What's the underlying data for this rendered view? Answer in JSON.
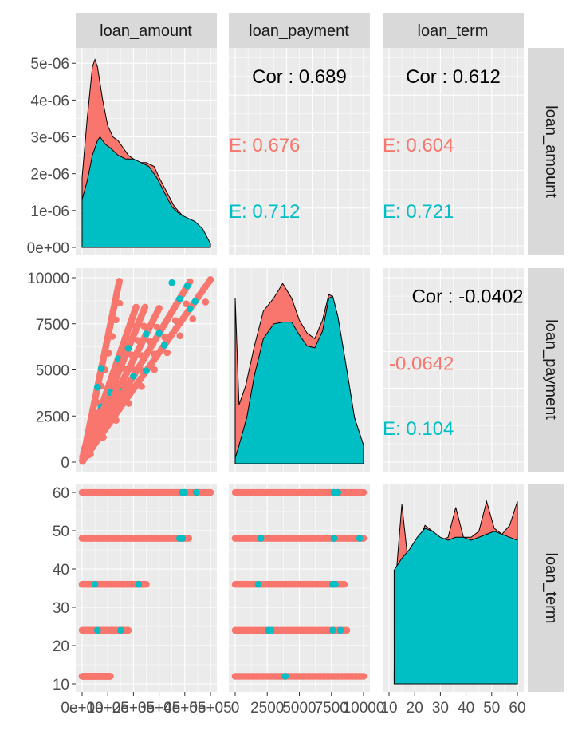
{
  "variables": [
    "loan_amount",
    "loan_payment",
    "loan_term"
  ],
  "colors": {
    "group_a": "#F8766D",
    "group_b": "#00BFC4",
    "panel_bg": "#EBEBEB",
    "strip_bg": "#D9D9D9",
    "grid": "#FFFFFF",
    "axis_text": "#4D4D4D",
    "strip_text": "#1A1A1A"
  },
  "axes": {
    "loan_amount": {
      "range": [
        0,
        500000
      ],
      "ticks": [
        0,
        100000,
        200000,
        300000,
        400000,
        500000
      ],
      "tick_labels": [
        "0e+00",
        "1e+05",
        "2e+05",
        "3e+05",
        "4e+05",
        "5e+05"
      ],
      "x_tick_labels_overlapping": [
        "0e+00",
        "2e+05",
        "4e+05",
        "5e+05"
      ]
    },
    "loan_payment": {
      "range": [
        0,
        10000
      ],
      "ticks": [
        0,
        2500,
        5000,
        7500,
        10000
      ],
      "tick_labels": [
        "0",
        "2500",
        "5000",
        "7500",
        "10000"
      ]
    },
    "loan_term": {
      "range": [
        10,
        60
      ],
      "ticks": [
        10,
        20,
        30,
        40,
        50,
        60
      ],
      "tick_labels": [
        "10",
        "20",
        "30",
        "40",
        "50",
        "60"
      ]
    },
    "density_y": {
      "range": [
        0,
        5.2e-06
      ],
      "ticks": [
        0,
        1e-06,
        2e-06,
        3e-06,
        4e-06,
        5e-06
      ],
      "tick_labels": [
        "0e+00",
        "1e-06",
        "2e-06",
        "3e-06",
        "4e-06",
        "5e-06"
      ]
    }
  },
  "chart_data": {
    "type": "pairs_plot",
    "panels": [
      {
        "panel": "loan_amount density",
        "type": "area",
        "x": "loan_amount",
        "series": [
          {
            "group": "group_a",
            "points": [
              [
                0,
                1.9e-06
              ],
              [
                20000,
                3.5e-06
              ],
              [
                40000,
                4.9e-06
              ],
              [
                50000,
                5.1e-06
              ],
              [
                60000,
                4.9e-06
              ],
              [
                80000,
                4e-06
              ],
              [
                100000,
                3.3e-06
              ],
              [
                120000,
                3e-06
              ],
              [
                140000,
                2.9e-06
              ],
              [
                160000,
                2.7e-06
              ],
              [
                180000,
                2.5e-06
              ],
              [
                200000,
                2.4e-06
              ],
              [
                220000,
                2.3e-06
              ],
              [
                250000,
                2.3e-06
              ],
              [
                280000,
                2.2e-06
              ],
              [
                300000,
                1.9e-06
              ],
              [
                330000,
                1.5e-06
              ],
              [
                360000,
                1.1e-06
              ],
              [
                400000,
                8e-07
              ],
              [
                430000,
                7e-07
              ],
              [
                460000,
                5e-07
              ],
              [
                500000,
                1e-07
              ]
            ]
          },
          {
            "group": "group_b",
            "points": [
              [
                0,
                1.3e-06
              ],
              [
                20000,
                1.8e-06
              ],
              [
                40000,
                2.5e-06
              ],
              [
                60000,
                2.9e-06
              ],
              [
                70000,
                3e-06
              ],
              [
                90000,
                2.8e-06
              ],
              [
                110000,
                2.7e-06
              ],
              [
                140000,
                2.5e-06
              ],
              [
                170000,
                2.4e-06
              ],
              [
                200000,
                2.4e-06
              ],
              [
                230000,
                2.3e-06
              ],
              [
                260000,
                2.2e-06
              ],
              [
                290000,
                1.9e-06
              ],
              [
                320000,
                1.5e-06
              ],
              [
                350000,
                1.1e-06
              ],
              [
                380000,
                9e-07
              ],
              [
                410000,
                8e-07
              ],
              [
                440000,
                7e-07
              ],
              [
                470000,
                5e-07
              ],
              [
                500000,
                1e-07
              ]
            ]
          }
        ]
      },
      {
        "panel": "loan_payment vs loan_amount correlation",
        "text": [
          "Cor : 0.689",
          "E: 0.676",
          "E: 0.712"
        ],
        "values": [
          0.689,
          0.676,
          0.712
        ]
      },
      {
        "panel": "loan_term vs loan_amount correlation",
        "text": [
          "Cor : 0.612",
          "E: 0.604",
          "E: 0.721"
        ],
        "values": [
          0.612,
          0.604,
          0.721
        ]
      },
      {
        "panel": "loan_amount vs loan_payment scatter",
        "type": "scatter",
        "x": "loan_amount",
        "y": "loan_payment",
        "rays": [
          {
            "slope": 0.0677,
            "x_max": 145000,
            "cyan": [
              60000,
              75000
            ]
          },
          {
            "slope": 0.04,
            "x_max": 210000,
            "cyan": [
              75000,
              140000
            ]
          },
          {
            "slope": 0.0343,
            "x_max": 245000,
            "cyan": [
              110000,
              180000
            ]
          },
          {
            "slope": 0.0278,
            "x_max": 300000,
            "cyan": [
              140000,
              250000,
              350000
            ]
          },
          {
            "slope": 0.0233,
            "x_max": 420000,
            "cyan": [
              200000,
              300000,
              380000,
              410000
            ]
          },
          {
            "slope": 0.0198,
            "x_max": 500000,
            "cyan": [
              250000,
              320000,
              420000,
              440000
            ]
          }
        ]
      },
      {
        "panel": "loan_payment density",
        "type": "area",
        "x": "loan_payment",
        "series": [
          {
            "group": "group_a",
            "points": [
              [
                0,
                9e-06
              ],
              [
                300,
                3.2e-06
              ],
              [
                800,
                4.2e-06
              ],
              [
                1500,
                6.4e-06
              ],
              [
                2200,
                8.3e-06
              ],
              [
                3000,
                9e-06
              ],
              [
                3700,
                9.8e-06
              ],
              [
                4400,
                9e-06
              ],
              [
                5000,
                7.8e-06
              ],
              [
                5600,
                7.1e-06
              ],
              [
                6200,
                6.8e-06
              ],
              [
                6800,
                7.8e-06
              ],
              [
                7300,
                9.2e-06
              ],
              [
                7600,
                9.1e-06
              ],
              [
                8000,
                8e-06
              ],
              [
                8600,
                5.5e-06
              ],
              [
                9300,
                2.5e-06
              ],
              [
                10000,
                1e-06
              ]
            ]
          },
          {
            "group": "group_b",
            "points": [
              [
                0,
                3e-07
              ],
              [
                300,
                1e-06
              ],
              [
                900,
                2.5e-06
              ],
              [
                1500,
                4.8e-06
              ],
              [
                2200,
                6.8e-06
              ],
              [
                3000,
                7.6e-06
              ],
              [
                3700,
                7.7e-06
              ],
              [
                4400,
                7.7e-06
              ],
              [
                5000,
                7e-06
              ],
              [
                5600,
                6.4e-06
              ],
              [
                6200,
                6.3e-06
              ],
              [
                6800,
                7.2e-06
              ],
              [
                7300,
                9e-06
              ],
              [
                7600,
                9.1e-06
              ],
              [
                8000,
                8e-06
              ],
              [
                8600,
                5.5e-06
              ],
              [
                9300,
                2.5e-06
              ],
              [
                10000,
                1e-06
              ]
            ]
          }
        ]
      },
      {
        "panel": "loan_term vs loan_payment correlation",
        "text": [
          "Cor : -0.0402",
          "-0.0642",
          "E: 0.104"
        ],
        "values": [
          -0.0402,
          -0.0642,
          0.104
        ]
      },
      {
        "panel": "loan_amount vs loan_term scatter",
        "type": "scatter",
        "x": "loan_amount",
        "y": "loan_term",
        "strips": [
          {
            "y": 60,
            "x_max": 500000,
            "cyan": [
              390000,
              400000,
              445000
            ]
          },
          {
            "y": 48,
            "x_max": 415000,
            "cyan": [
              380000,
              390000
            ]
          },
          {
            "y": 36,
            "x_max": 250000,
            "cyan": [
              50000,
              220000
            ]
          },
          {
            "y": 24,
            "x_max": 180000,
            "cyan": [
              60000,
              150000
            ]
          },
          {
            "y": 12,
            "x_max": 110000,
            "cyan": []
          }
        ]
      },
      {
        "panel": "loan_payment vs loan_term scatter",
        "type": "scatter",
        "x": "loan_payment",
        "y": "loan_term",
        "strips": [
          {
            "y": 60,
            "x_max": 10000,
            "cyan": [
              7700,
              8000
            ]
          },
          {
            "y": 48,
            "x_max": 10000,
            "cyan": [
              2000,
              7700,
              9700
            ]
          },
          {
            "y": 36,
            "x_max": 8500,
            "cyan": [
              1800,
              7600,
              7800
            ]
          },
          {
            "y": 24,
            "x_max": 8700,
            "cyan": [
              2600,
              2800,
              7600,
              8200
            ]
          },
          {
            "y": 12,
            "x_max": 10000,
            "cyan": [
              3900
            ]
          }
        ]
      },
      {
        "panel": "loan_term density",
        "type": "area",
        "x": "loan_term",
        "series": [
          {
            "group": "group_a",
            "points": [
              [
                12,
                4e-07
              ],
              [
                13,
                3.9e-06
              ],
              [
                15,
                6e-06
              ],
              [
                18,
                3.6e-06
              ],
              [
                21,
                4.6e-06
              ],
              [
                24,
                5.3e-06
              ],
              [
                27,
                5.1e-06
              ],
              [
                30,
                4.8e-06
              ],
              [
                33,
                4.9e-06
              ],
              [
                36,
                5.9e-06
              ],
              [
                39,
                4.9e-06
              ],
              [
                42,
                4.9e-06
              ],
              [
                45,
                5.1e-06
              ],
              [
                48,
                6.1e-06
              ],
              [
                51,
                5.2e-06
              ],
              [
                54,
                5e-06
              ],
              [
                57,
                5.3e-06
              ],
              [
                60,
                6.1e-06
              ]
            ]
          },
          {
            "group": "group_b",
            "points": [
              [
                12,
                3.8e-06
              ],
              [
                15,
                4.2e-06
              ],
              [
                18,
                4.5e-06
              ],
              [
                21,
                4.9e-06
              ],
              [
                24,
                5.2e-06
              ],
              [
                27,
                5.1e-06
              ],
              [
                30,
                4.9e-06
              ],
              [
                33,
                4.8e-06
              ],
              [
                36,
                4.9e-06
              ],
              [
                39,
                4.9e-06
              ],
              [
                42,
                4.8e-06
              ],
              [
                45,
                4.9e-06
              ],
              [
                48,
                5e-06
              ],
              [
                51,
                5.1e-06
              ],
              [
                54,
                5e-06
              ],
              [
                57,
                4.9e-06
              ],
              [
                60,
                4.8e-06
              ]
            ]
          }
        ]
      }
    ]
  }
}
